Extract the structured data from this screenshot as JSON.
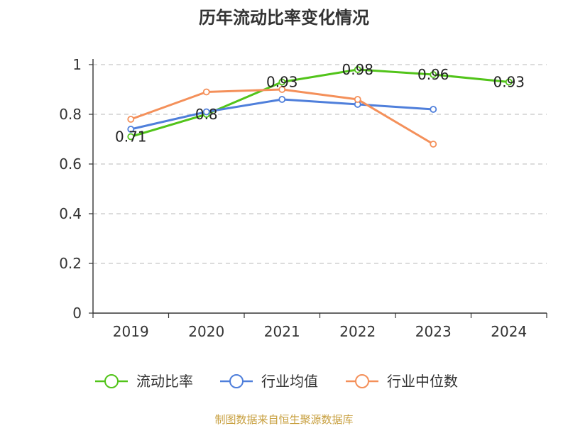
{
  "chart_data": {
    "type": "line",
    "title": "历年流动比率变化情况",
    "xlabel": "",
    "ylabel": "",
    "categories": [
      "2019",
      "2020",
      "2021",
      "2022",
      "2023",
      "2024"
    ],
    "ylim": [
      0,
      1
    ],
    "yticks": [
      "0",
      "0.2",
      "0.4",
      "0.6",
      "0.8",
      "1"
    ],
    "grid": true,
    "legend_position": "bottom",
    "series": [
      {
        "name": "流动比率",
        "color": "#52c41a",
        "values": [
          0.71,
          0.8,
          0.93,
          0.98,
          0.96,
          0.93
        ],
        "labels": [
          "0.71",
          "0.8",
          "0.93",
          "0.98",
          "0.96",
          "0.93"
        ]
      },
      {
        "name": "行业均值",
        "color": "#4f7fdb",
        "values": [
          0.74,
          0.81,
          0.86,
          0.84,
          0.82,
          null
        ]
      },
      {
        "name": "行业中位数",
        "color": "#f4905a",
        "values": [
          0.78,
          0.89,
          0.9,
          0.86,
          0.68,
          null
        ]
      }
    ],
    "source": "制图数据来自恒生聚源数据库"
  }
}
